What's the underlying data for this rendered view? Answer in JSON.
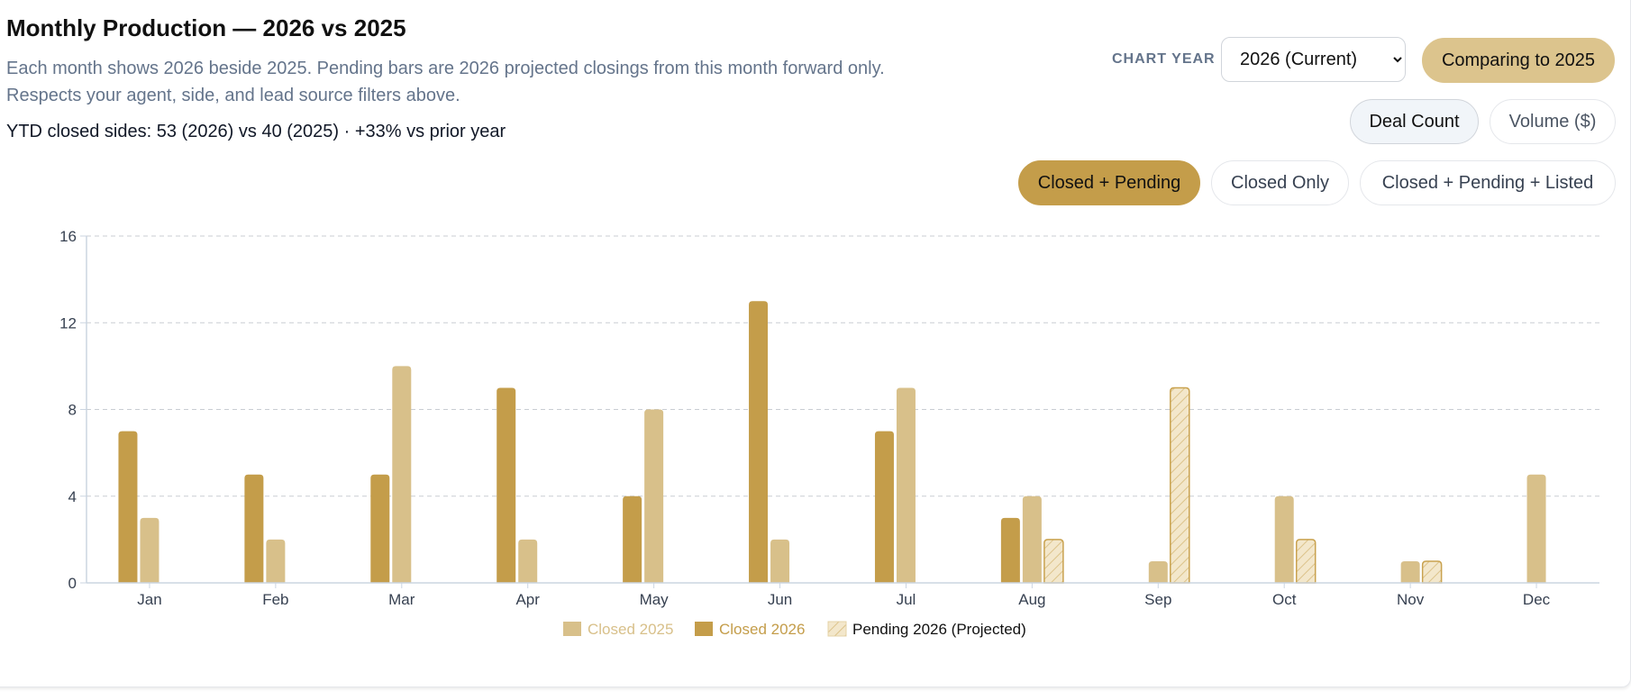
{
  "header": {
    "title": "Monthly Production — 2026 vs 2025",
    "subtitle": "Each month shows 2026 beside 2025. Pending bars are 2026 projected closings from this month forward only. Respects your agent, side, and lead source filters above.",
    "ytd": "YTD closed sides: 53 (2026) vs 40 (2025) · +33% vs prior year"
  },
  "controls": {
    "chart_year_label": "CHART YEAR",
    "chart_year_value": "2026 (Current)",
    "compare_label": "Comparing to 2025",
    "metric_options": [
      "Deal Count",
      "Volume ($)"
    ],
    "metric_selected": "Deal Count",
    "mode_options": [
      "Closed + Pending",
      "Closed Only",
      "Closed + Pending + Listed"
    ],
    "mode_selected": "Closed + Pending"
  },
  "colors": {
    "closed_2025": "#d8c08a",
    "closed_2026": "#c49d4a",
    "pending_fill": "#f3e7cb",
    "pending_stroke": "#c9a24f",
    "grid": "#c9cdd3",
    "axis": "#cbd5e1",
    "tick_text": "#374151"
  },
  "chart_data": {
    "type": "bar",
    "categories": [
      "Jan",
      "Feb",
      "Mar",
      "Apr",
      "May",
      "Jun",
      "Jul",
      "Aug",
      "Sep",
      "Oct",
      "Nov",
      "Dec"
    ],
    "series": [
      {
        "name": "Closed 2026",
        "values": [
          7,
          5,
          5,
          9,
          4,
          13,
          7,
          3,
          0,
          0,
          0,
          0
        ]
      },
      {
        "name": "Closed 2025",
        "values": [
          3,
          2,
          10,
          2,
          8,
          2,
          9,
          4,
          1,
          4,
          1,
          5
        ]
      },
      {
        "name": "Pending 2026 (Projected)",
        "values": [
          0,
          0,
          0,
          0,
          0,
          0,
          0,
          2,
          9,
          2,
          1,
          0
        ]
      }
    ],
    "legend": [
      "Closed 2025",
      "Closed 2026",
      "Pending 2026 (Projected)"
    ],
    "legend_position": "bottom",
    "yticks": [
      0,
      4,
      8,
      12,
      16
    ],
    "ylim": [
      0,
      16
    ],
    "grid": true
  }
}
